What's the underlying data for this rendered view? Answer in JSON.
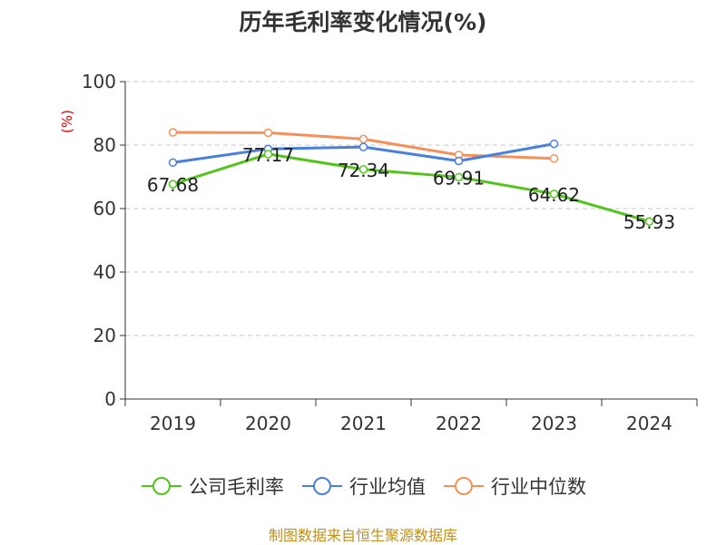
{
  "title": "历年毛利率变化情况(%)",
  "ylabel": "(%)",
  "source": "制图数据来自恒生聚源数据库",
  "chart_data": {
    "type": "line",
    "categories": [
      "2019",
      "2020",
      "2021",
      "2022",
      "2023",
      "2024"
    ],
    "ylim": [
      0,
      100
    ],
    "yticks": [
      "0",
      "20",
      "40",
      "60",
      "80",
      "100"
    ],
    "grid": true,
    "legend_position": "bottom",
    "series": [
      {
        "name": "公司毛利率",
        "color": "#52c41a",
        "values": [
          67.68,
          77.17,
          72.34,
          69.91,
          64.62,
          55.93
        ],
        "labels": [
          "67.68",
          "77.17",
          "72.34",
          "69.91",
          "64.62",
          "55.93"
        ]
      },
      {
        "name": "行业均值",
        "color": "#4a7fdc",
        "values": [
          74.5,
          78.8,
          79.4,
          75.0,
          80.4,
          null
        ]
      },
      {
        "name": "行业中位数",
        "color": "#f5905a",
        "values": [
          84.0,
          83.9,
          81.9,
          76.9,
          75.8,
          null
        ]
      }
    ]
  }
}
